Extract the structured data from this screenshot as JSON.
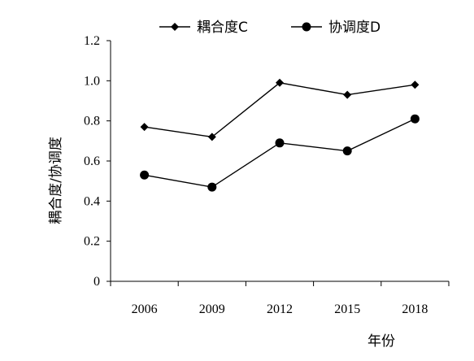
{
  "chart_data": {
    "type": "line",
    "title": "",
    "xlabel": "年份",
    "ylabel": "耦合度/协调度",
    "categories": [
      "2006",
      "2009",
      "2012",
      "2015",
      "2018"
    ],
    "ylim": [
      0,
      1.2
    ],
    "yticks": [
      "0",
      "0.2",
      "0.4",
      "0.6",
      "0.8",
      "1.0",
      "1.2"
    ],
    "grid": false,
    "legend_position": "top",
    "series": [
      {
        "name": "耦合度C",
        "marker": "diamond",
        "color": "#000000",
        "values": [
          0.77,
          0.72,
          0.99,
          0.93,
          0.98
        ]
      },
      {
        "name": "协调度D",
        "marker": "circle",
        "color": "#000000",
        "values": [
          0.53,
          0.47,
          0.69,
          0.65,
          0.81
        ]
      }
    ]
  }
}
